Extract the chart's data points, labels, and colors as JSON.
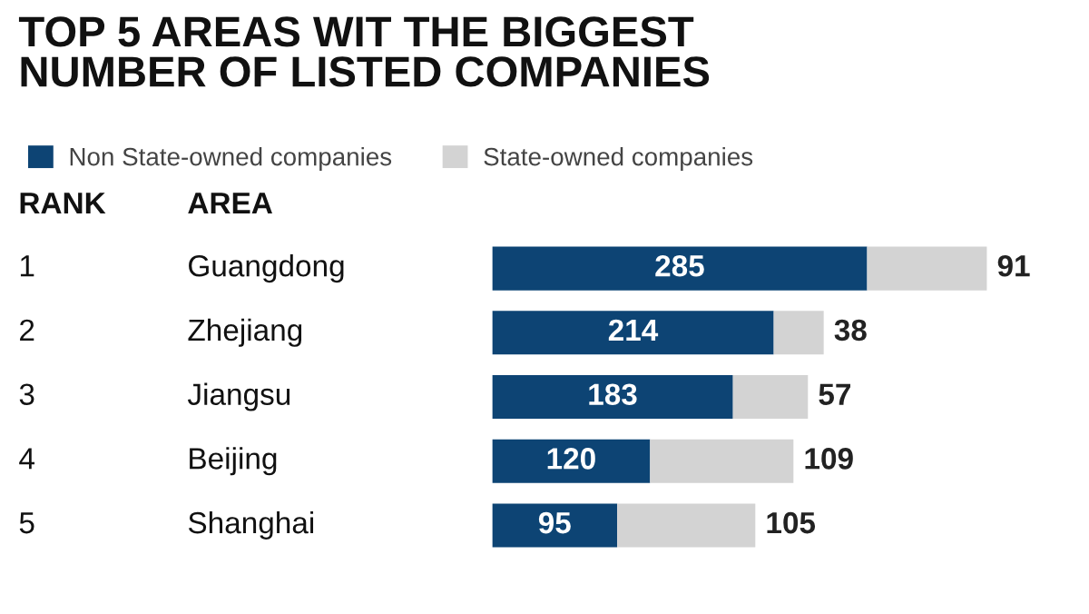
{
  "chart_data": {
    "type": "bar",
    "orientation": "horizontal",
    "stacked": true,
    "title": "TOP 5 AREAS WIT THE BIGGEST\nNUMBER OF LISTED COMPANIES",
    "categories": [
      "Guangdong",
      "Zhejiang",
      "Jiangsu",
      "Beijing",
      "Shanghai"
    ],
    "series": [
      {
        "name": "Non State-owned companies",
        "color": "#0d4474",
        "values": [
          285,
          214,
          183,
          120,
          95
        ]
      },
      {
        "name": "State-owned companies",
        "color": "#d3d3d3",
        "values": [
          91,
          38,
          57,
          109,
          105
        ]
      }
    ],
    "annotations": [
      "RANK",
      "AREA",
      "1",
      "2",
      "3",
      "4",
      "5"
    ],
    "legend": "top left",
    "data_labels": true
  }
}
